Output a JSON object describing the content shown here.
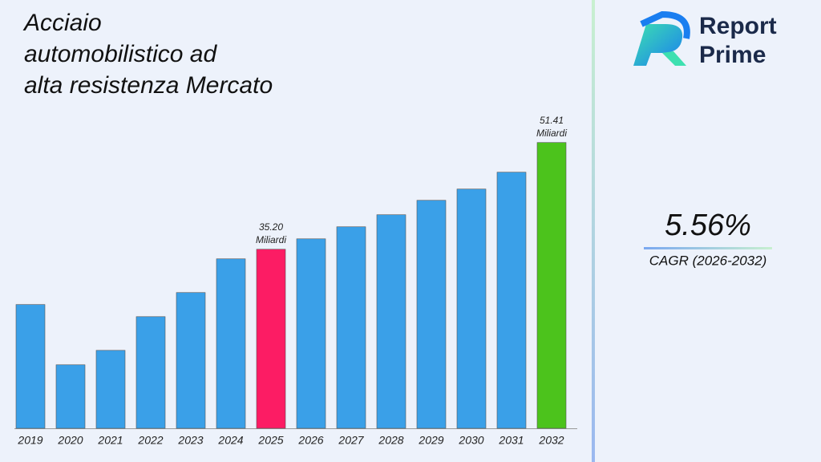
{
  "chart_data": {
    "type": "bar",
    "title_lines": [
      "Acciaio",
      "automobilistico ad",
      "alta resistenza Mercato"
    ],
    "categories": [
      "2019",
      "2020",
      "2021",
      "2022",
      "2023",
      "2024",
      "2025",
      "2026",
      "2027",
      "2028",
      "2029",
      "2030",
      "2031",
      "2032"
    ],
    "values": [
      26.8,
      17.65,
      19.84,
      24.96,
      28.62,
      33.74,
      35.2,
      36.78,
      38.61,
      40.44,
      42.63,
      44.34,
      46.9,
      51.41
    ],
    "value_labels": [
      null,
      null,
      null,
      null,
      null,
      null,
      "35.20",
      null,
      null,
      null,
      null,
      null,
      null,
      "51.41"
    ],
    "value_unit": "Miliardi",
    "colors": [
      "#3aa0e8",
      "#3aa0e8",
      "#3aa0e8",
      "#3aa0e8",
      "#3aa0e8",
      "#3aa0e8",
      "#fc1c64",
      "#3aa0e8",
      "#3aa0e8",
      "#3aa0e8",
      "#3aa0e8",
      "#3aa0e8",
      "#3aa0e8",
      "#4cc31c"
    ],
    "ylim": [
      8,
      56
    ]
  },
  "sidebar": {
    "brand": [
      "Report",
      "Prime"
    ],
    "cagr": "5.56%",
    "cagr_label": "CAGR (2026-2032)"
  }
}
